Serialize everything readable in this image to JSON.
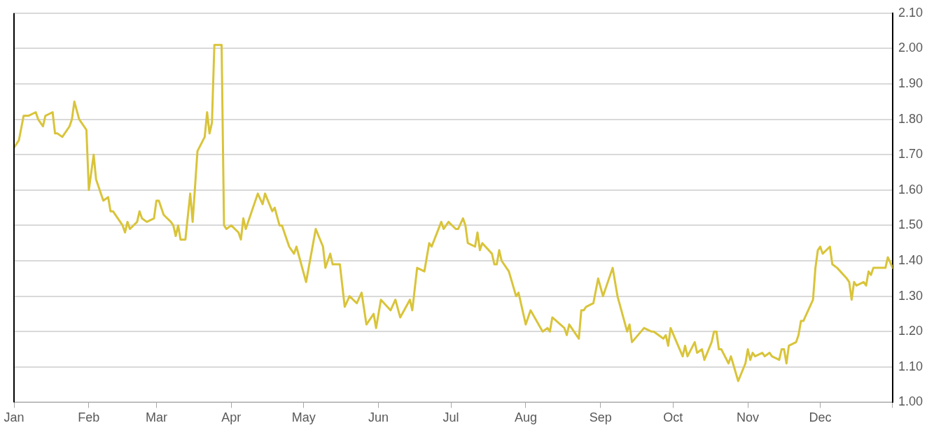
{
  "chart_data": {
    "type": "line",
    "color": "#d9c43a",
    "marker": "none",
    "line_style": "solid",
    "grid": "y",
    "legend": false,
    "x": [
      "--01-01",
      "--01-03",
      "--01-05",
      "--01-07",
      "--01-10",
      "--01-11",
      "--01-13",
      "--01-14",
      "--01-17",
      "--01-18",
      "--01-19",
      "--01-21",
      "--01-24",
      "--01-25",
      "--01-26",
      "--01-28",
      "--01-31",
      "--02-01",
      "--02-03",
      "--02-04",
      "--02-07",
      "--02-09",
      "--02-10",
      "--02-11",
      "--02-15",
      "--02-16",
      "--02-17",
      "--02-18",
      "--02-21",
      "--02-22",
      "--02-23",
      "--02-25",
      "--02-28",
      "--03-01",
      "--03-02",
      "--03-04",
      "--03-07",
      "--03-08",
      "--03-09",
      "--03-10",
      "--03-11",
      "--03-13",
      "--03-15",
      "--03-16",
      "--03-18",
      "--03-21",
      "--03-22",
      "--03-23",
      "--03-24",
      "--03-25",
      "--03-28",
      "--03-29",
      "--03-30",
      "--04-01",
      "--04-04",
      "--04-05",
      "--04-06",
      "--04-07",
      "--04-12",
      "--04-14",
      "--04-15",
      "--04-18",
      "--04-19",
      "--04-21",
      "--04-22",
      "--04-25",
      "--04-27",
      "--04-28",
      "--05-02",
      "--05-06",
      "--05-09",
      "--05-10",
      "--05-12",
      "--05-13",
      "--05-16",
      "--05-18",
      "--05-20",
      "--05-23",
      "--05-25",
      "--05-27",
      "--05-30",
      "--05-31",
      "--06-02",
      "--06-06",
      "--06-08",
      "--06-10",
      "--06-14",
      "--06-15",
      "--06-17",
      "--06-20",
      "--06-22",
      "--06-23",
      "--06-27",
      "--06-28",
      "--06-30",
      "--07-03",
      "--07-04",
      "--07-06",
      "--07-07",
      "--07-08",
      "--07-11",
      "--07-12",
      "--07-13",
      "--07-14",
      "--07-18",
      "--07-19",
      "--07-20",
      "--07-21",
      "--07-22",
      "--07-25",
      "--07-28",
      "--07-29",
      "--08-01",
      "--08-03",
      "--08-08",
      "--08-10",
      "--08-11",
      "--08-12",
      "--08-17",
      "--08-18",
      "--08-19",
      "--08-23",
      "--08-24",
      "--08-25",
      "--08-26",
      "--08-29",
      "--08-31",
      "--09-02",
      "--09-04",
      "--09-06",
      "--09-08",
      "--09-12",
      "--09-13",
      "--09-14",
      "--09-19",
      "--09-22",
      "--09-23",
      "--09-27",
      "--09-28",
      "--09-29",
      "--09-30",
      "--10-05",
      "--10-06",
      "--10-07",
      "--10-10",
      "--10-11",
      "--10-13",
      "--10-14",
      "--10-17",
      "--10-18",
      "--10-19",
      "--10-20",
      "--10-21",
      "--10-24",
      "--10-25",
      "--10-28",
      "--10-31",
      "--11-01",
      "--11-02",
      "--11-03",
      "--11-04",
      "--11-07",
      "--11-08",
      "--11-10",
      "--11-11",
      "--11-14",
      "--11-15",
      "--11-16",
      "--11-17",
      "--11-18",
      "--11-21",
      "--11-22",
      "--11-23",
      "--11-24",
      "--11-28",
      "--11-29",
      "--11-30",
      "--12-01",
      "--12-02",
      "--12-05",
      "--12-06",
      "--12-08",
      "--12-12",
      "--12-13",
      "--12-14",
      "--12-15",
      "--12-16",
      "--12-19",
      "--12-20",
      "--12-21",
      "--12-22",
      "--12-23",
      "--12-28",
      "--12-29",
      "--12-31"
    ],
    "values": [
      1.72,
      1.74,
      1.81,
      1.81,
      1.82,
      1.8,
      1.78,
      1.81,
      1.82,
      1.76,
      1.76,
      1.75,
      1.78,
      1.8,
      1.85,
      1.8,
      1.77,
      1.6,
      1.7,
      1.63,
      1.57,
      1.58,
      1.54,
      1.54,
      1.5,
      1.48,
      1.51,
      1.49,
      1.51,
      1.54,
      1.52,
      1.51,
      1.52,
      1.57,
      1.57,
      1.53,
      1.51,
      1.5,
      1.47,
      1.5,
      1.46,
      1.46,
      1.59,
      1.51,
      1.71,
      1.75,
      1.82,
      1.76,
      1.79,
      2.01,
      2.01,
      1.5,
      1.49,
      1.5,
      1.48,
      1.46,
      1.52,
      1.49,
      1.59,
      1.56,
      1.59,
      1.54,
      1.55,
      1.5,
      1.5,
      1.44,
      1.42,
      1.44,
      1.34,
      1.49,
      1.44,
      1.38,
      1.42,
      1.39,
      1.39,
      1.27,
      1.3,
      1.28,
      1.31,
      1.22,
      1.25,
      1.21,
      1.29,
      1.26,
      1.29,
      1.24,
      1.29,
      1.26,
      1.38,
      1.37,
      1.45,
      1.44,
      1.51,
      1.49,
      1.51,
      1.49,
      1.49,
      1.52,
      1.5,
      1.45,
      1.44,
      1.48,
      1.43,
      1.45,
      1.42,
      1.39,
      1.39,
      1.43,
      1.4,
      1.37,
      1.3,
      1.31,
      1.22,
      1.26,
      1.2,
      1.21,
      1.2,
      1.24,
      1.21,
      1.19,
      1.22,
      1.18,
      1.26,
      1.26,
      1.27,
      1.28,
      1.35,
      1.3,
      1.34,
      1.38,
      1.3,
      1.2,
      1.22,
      1.17,
      1.21,
      1.2,
      1.2,
      1.18,
      1.19,
      1.16,
      1.21,
      1.13,
      1.16,
      1.13,
      1.17,
      1.14,
      1.15,
      1.12,
      1.17,
      1.2,
      1.2,
      1.15,
      1.15,
      1.11,
      1.13,
      1.06,
      1.11,
      1.15,
      1.12,
      1.14,
      1.13,
      1.14,
      1.13,
      1.14,
      1.13,
      1.12,
      1.15,
      1.15,
      1.11,
      1.16,
      1.17,
      1.19,
      1.23,
      1.23,
      1.29,
      1.38,
      1.43,
      1.44,
      1.42,
      1.44,
      1.39,
      1.38,
      1.35,
      1.34,
      1.29,
      1.34,
      1.33,
      1.34,
      1.33,
      1.37,
      1.36,
      1.38,
      1.38,
      1.41,
      1.38
    ],
    "xlim": [
      "--01-01",
      "--12-31"
    ],
    "xticks": [
      {
        "value": "--01-01",
        "label": "Jan"
      },
      {
        "value": "--02-01",
        "label": "Feb"
      },
      {
        "value": "--03-01",
        "label": "Mar"
      },
      {
        "value": "--04-01",
        "label": "Apr"
      },
      {
        "value": "--05-01",
        "label": "May"
      },
      {
        "value": "--06-01",
        "label": "Jun"
      },
      {
        "value": "--07-01",
        "label": "Jul"
      },
      {
        "value": "--08-01",
        "label": "Aug"
      },
      {
        "value": "--09-01",
        "label": "Sep"
      },
      {
        "value": "--10-01",
        "label": "Oct"
      },
      {
        "value": "--11-01",
        "label": "Nov"
      },
      {
        "value": "--12-01",
        "label": "Dec"
      },
      {
        "value": "--12-31",
        "label": null
      }
    ],
    "ylim": [
      1,
      2.1
    ],
    "yticks": [
      {
        "value": 1,
        "label": "1.00"
      },
      {
        "value": 1.1,
        "label": "1.10"
      },
      {
        "value": 1.2,
        "label": "1.20"
      },
      {
        "value": 1.3,
        "label": "1.30"
      },
      {
        "value": 1.4,
        "label": "1.40"
      },
      {
        "value": 1.5,
        "label": "1.50"
      },
      {
        "value": 1.6,
        "label": "1.60"
      },
      {
        "value": 1.7,
        "label": "1.70"
      },
      {
        "value": 1.8,
        "label": "1.80"
      },
      {
        "value": 1.9,
        "label": "1.90"
      },
      {
        "value": 2.0,
        "label": "2.00"
      },
      {
        "value": 2.1,
        "label": "2.10"
      }
    ]
  }
}
